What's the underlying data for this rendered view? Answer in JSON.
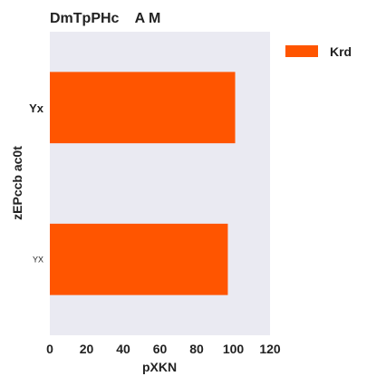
{
  "chart_data": {
    "type": "bar",
    "orientation": "horizontal",
    "title": "DmTpPHc    A M",
    "xlabel": "pXKN",
    "ylabel": "zEPccb ac0t",
    "categories": [
      "Yx",
      "YX"
    ],
    "series": [
      {
        "name": "Krd",
        "values": [
          101,
          97
        ],
        "color": "#ff5500"
      }
    ],
    "xlim": [
      0,
      120
    ],
    "xticks": [
      0,
      20,
      40,
      60,
      80,
      100,
      120
    ],
    "grid": false,
    "legend_position": "outside-top-right",
    "background_color": "#eaeaf2"
  }
}
